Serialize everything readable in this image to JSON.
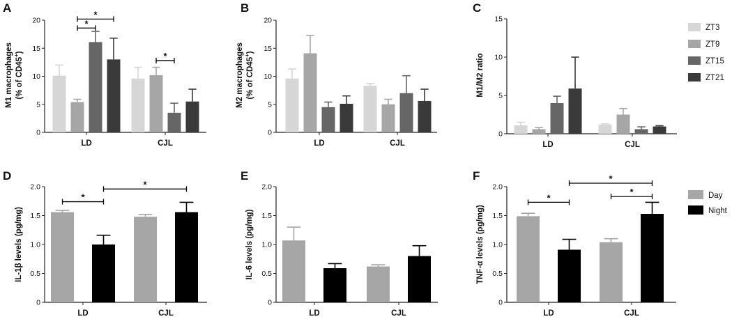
{
  "figure": {
    "legend_top": [
      "ZT3",
      "ZT9",
      "ZT15",
      "ZT21"
    ],
    "legend_bottom": [
      "Day",
      "Night"
    ]
  },
  "colors": {
    "ZT3": "#d6d6d6",
    "ZT9": "#a6a6a6",
    "ZT15": "#666666",
    "ZT21": "#3a3a3a",
    "Day": "#a6a6a6",
    "Night": "#000000",
    "axis": "#222222"
  },
  "chart_data": [
    {
      "id": "A",
      "letter": "A",
      "type": "bar",
      "ylabel_lines": [
        "M1 macrophages",
        "(% of CD45",
        "+",
        ")"
      ],
      "ylim": [
        0,
        20
      ],
      "yticks": [
        0,
        5,
        10,
        15,
        20
      ],
      "ytick_labels": [
        "0",
        "5",
        "10",
        "15",
        "20"
      ],
      "categories": [
        "LD",
        "CJL"
      ],
      "series": [
        {
          "name": "ZT3",
          "values": [
            10.1,
            9.6
          ],
          "errors": [
            1.9,
            2.0
          ]
        },
        {
          "name": "ZT9",
          "values": [
            5.4,
            10.2
          ],
          "errors": [
            0.5,
            1.4
          ]
        },
        {
          "name": "ZT15",
          "values": [
            16.1,
            3.5
          ],
          "errors": [
            1.9,
            1.7
          ]
        },
        {
          "name": "ZT21",
          "values": [
            13.0,
            5.5
          ],
          "errors": [
            3.8,
            2.2
          ]
        }
      ],
      "significance": [
        {
          "label": "*",
          "from": [
            0,
            1
          ],
          "to": [
            0,
            3
          ],
          "y": 20.2
        },
        {
          "label": "*",
          "from": [
            0,
            1
          ],
          "to": [
            0,
            2
          ],
          "y": 18.6
        },
        {
          "label": "*",
          "from": [
            1,
            1
          ],
          "to": [
            1,
            2
          ],
          "y": 12.8
        }
      ]
    },
    {
      "id": "B",
      "letter": "B",
      "type": "bar",
      "ylabel_lines": [
        "M2 macrophages",
        "(% of CD45",
        "+",
        ")"
      ],
      "ylim": [
        0,
        20
      ],
      "yticks": [
        0,
        5,
        10,
        15,
        20
      ],
      "ytick_labels": [
        "0",
        "5",
        "10",
        "15",
        "20"
      ],
      "categories": [
        "LD",
        "CJL"
      ],
      "series": [
        {
          "name": "ZT3",
          "values": [
            9.6,
            8.3
          ],
          "errors": [
            1.7,
            0.4
          ]
        },
        {
          "name": "ZT9",
          "values": [
            14.1,
            5.0
          ],
          "errors": [
            3.2,
            0.9
          ]
        },
        {
          "name": "ZT15",
          "values": [
            4.5,
            7.0
          ],
          "errors": [
            0.9,
            3.1
          ]
        },
        {
          "name": "ZT21",
          "values": [
            5.1,
            5.6
          ],
          "errors": [
            1.4,
            2.1
          ]
        }
      ],
      "significance": []
    },
    {
      "id": "C",
      "letter": "C",
      "type": "bar",
      "ylabel_lines": [
        "M1/M2 ratio"
      ],
      "ylim": [
        0,
        15
      ],
      "yticks": [
        0,
        5,
        10,
        15
      ],
      "ytick_labels": [
        "0",
        "5",
        "10",
        "15"
      ],
      "categories": [
        "LD",
        "CJL"
      ],
      "series": [
        {
          "name": "ZT3",
          "values": [
            1.1,
            1.2
          ],
          "errors": [
            0.4,
            0.1
          ]
        },
        {
          "name": "ZT9",
          "values": [
            0.6,
            2.5
          ],
          "errors": [
            0.2,
            0.8
          ]
        },
        {
          "name": "ZT15",
          "values": [
            4.0,
            0.6
          ],
          "errors": [
            0.9,
            0.3
          ]
        },
        {
          "name": "ZT21",
          "values": [
            5.9,
            0.95
          ],
          "errors": [
            4.1,
            0.1
          ]
        }
      ],
      "significance": []
    },
    {
      "id": "D",
      "letter": "D",
      "type": "bar",
      "ylabel_lines": [
        "IL-1β levels (pg/mg)"
      ],
      "ylim": [
        0,
        2.0
      ],
      "yticks": [
        0,
        0.5,
        1.0,
        1.5,
        2.0
      ],
      "ytick_labels": [
        "0",
        "0.5",
        "1.0",
        "1.5",
        "2.0"
      ],
      "categories": [
        "LD",
        "CJL"
      ],
      "series": [
        {
          "name": "Day",
          "values": [
            1.56,
            1.48
          ],
          "errors": [
            0.03,
            0.04
          ]
        },
        {
          "name": "Night",
          "values": [
            1.0,
            1.56
          ],
          "errors": [
            0.16,
            0.17
          ]
        }
      ],
      "significance": [
        {
          "label": "*",
          "from": [
            0,
            0
          ],
          "to": [
            0,
            1
          ],
          "y": 1.74
        },
        {
          "label": "*",
          "from": [
            0,
            1
          ],
          "to": [
            1,
            1
          ],
          "y": 1.96
        }
      ]
    },
    {
      "id": "E",
      "letter": "E",
      "type": "bar",
      "ylabel_lines": [
        "IL-6 levels (pg/mg)"
      ],
      "ylim": [
        0,
        2.0
      ],
      "yticks": [
        0,
        0.5,
        1.0,
        1.5,
        2.0
      ],
      "ytick_labels": [
        "0",
        "0.5",
        "1.0",
        "1.5",
        "2.0"
      ],
      "categories": [
        "LD",
        "CJL"
      ],
      "series": [
        {
          "name": "Day",
          "values": [
            1.07,
            0.62
          ],
          "errors": [
            0.23,
            0.03
          ]
        },
        {
          "name": "Night",
          "values": [
            0.59,
            0.8
          ],
          "errors": [
            0.08,
            0.18
          ]
        }
      ],
      "significance": []
    },
    {
      "id": "F",
      "letter": "F",
      "type": "bar",
      "ylabel_lines": [
        "TNF-α levels (pg/mg)"
      ],
      "ylim": [
        0,
        2.0
      ],
      "yticks": [
        0,
        0.5,
        1.0,
        1.5,
        2.0
      ],
      "ytick_labels": [
        "0",
        "0.5",
        "1.0",
        "1.5",
        "2.0"
      ],
      "categories": [
        "LD",
        "CJL"
      ],
      "series": [
        {
          "name": "Day",
          "values": [
            1.49,
            1.04
          ],
          "errors": [
            0.05,
            0.06
          ]
        },
        {
          "name": "Night",
          "values": [
            0.91,
            1.53
          ],
          "errors": [
            0.18,
            0.2
          ]
        }
      ],
      "significance": [
        {
          "label": "*",
          "from": [
            0,
            0
          ],
          "to": [
            0,
            1
          ],
          "y": 1.73
        },
        {
          "label": "*",
          "from": [
            1,
            0
          ],
          "to": [
            1,
            1
          ],
          "y": 1.83
        },
        {
          "label": "*",
          "from": [
            0,
            1
          ],
          "to": [
            1,
            1
          ],
          "y": 2.06
        }
      ]
    }
  ]
}
